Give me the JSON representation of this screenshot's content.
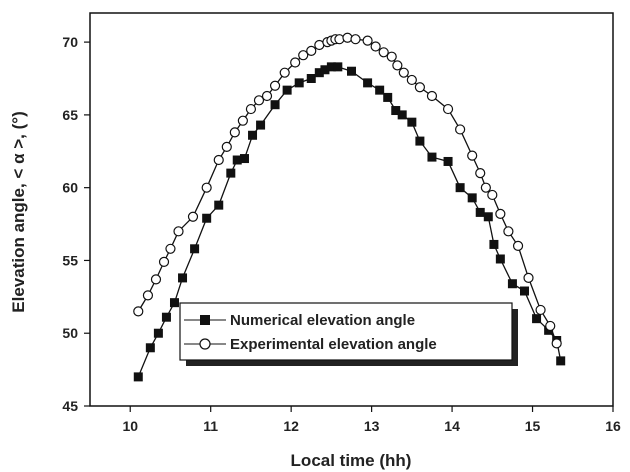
{
  "chart_data": {
    "type": "line",
    "title": "",
    "xlabel": "Local time (hh)",
    "ylabel": "Elevation angle, < α >, (°)",
    "xlim": [
      9.5,
      16
    ],
    "ylim": [
      45,
      72
    ],
    "xticks": [
      10,
      11,
      12,
      13,
      14,
      15,
      16
    ],
    "yticks": [
      45,
      50,
      55,
      60,
      65,
      70
    ],
    "grid": false,
    "legend_position": "bottom-center",
    "series": [
      {
        "name": "Numerical elevation angle",
        "marker": "filled-square",
        "color": "#111111",
        "x": [
          10.1,
          10.25,
          10.35,
          10.45,
          10.55,
          10.65,
          10.8,
          10.95,
          11.1,
          11.25,
          11.33,
          11.42,
          11.52,
          11.62,
          11.8,
          11.95,
          12.1,
          12.25,
          12.35,
          12.42,
          12.5,
          12.58,
          12.75,
          12.95,
          13.1,
          13.2,
          13.3,
          13.38,
          13.5,
          13.6,
          13.75,
          13.95,
          14.1,
          14.25,
          14.35,
          14.45,
          14.52,
          14.6,
          14.75,
          14.9,
          15.05,
          15.2,
          15.3,
          15.35
        ],
        "y": [
          47,
          49,
          50,
          51.1,
          52.1,
          53.8,
          55.8,
          57.9,
          58.8,
          61,
          61.9,
          62,
          63.6,
          64.3,
          65.7,
          66.7,
          67.2,
          67.5,
          67.9,
          68.1,
          68.3,
          68.3,
          68,
          67.2,
          66.7,
          66.2,
          65.3,
          65,
          64.5,
          63.2,
          62.1,
          61.8,
          60,
          59.3,
          58.3,
          58,
          56.1,
          55.1,
          53.4,
          52.9,
          51,
          50.2,
          49.5,
          48.1
        ]
      },
      {
        "name": "Experimental elevation angle",
        "marker": "open-circle",
        "color": "#111111",
        "x": [
          10.1,
          10.22,
          10.32,
          10.42,
          10.5,
          10.6,
          10.78,
          10.95,
          11.1,
          11.2,
          11.3,
          11.4,
          11.5,
          11.6,
          11.7,
          11.8,
          11.92,
          12.05,
          12.15,
          12.25,
          12.35,
          12.45,
          12.5,
          12.55,
          12.6,
          12.7,
          12.8,
          12.95,
          13.05,
          13.15,
          13.25,
          13.32,
          13.4,
          13.5,
          13.6,
          13.75,
          13.95,
          14.1,
          14.25,
          14.35,
          14.42,
          14.5,
          14.6,
          14.7,
          14.82,
          14.95,
          15.1,
          15.22,
          15.3
        ],
        "y": [
          51.5,
          52.6,
          53.7,
          54.9,
          55.8,
          57,
          58,
          60,
          61.9,
          62.8,
          63.8,
          64.6,
          65.4,
          66,
          66.3,
          67,
          67.9,
          68.6,
          69.1,
          69.4,
          69.8,
          70,
          70.1,
          70.2,
          70.2,
          70.3,
          70.2,
          70.1,
          69.7,
          69.3,
          69,
          68.4,
          67.9,
          67.4,
          66.9,
          66.3,
          65.4,
          64,
          62.2,
          61,
          60,
          59.5,
          58.2,
          57,
          56,
          53.8,
          51.6,
          50.5,
          49.3
        ]
      }
    ]
  }
}
